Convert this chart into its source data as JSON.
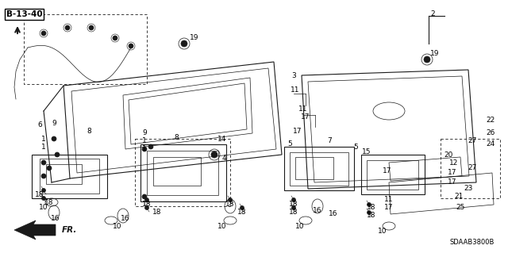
{
  "bg_color": "#ffffff",
  "fig_width": 6.4,
  "fig_height": 3.19,
  "dpi": 100,
  "line_color": "#1a1a1a",
  "diagram_id": "SDAAB3800B",
  "ref_label": "B-13-40",
  "direction_label": "FR."
}
